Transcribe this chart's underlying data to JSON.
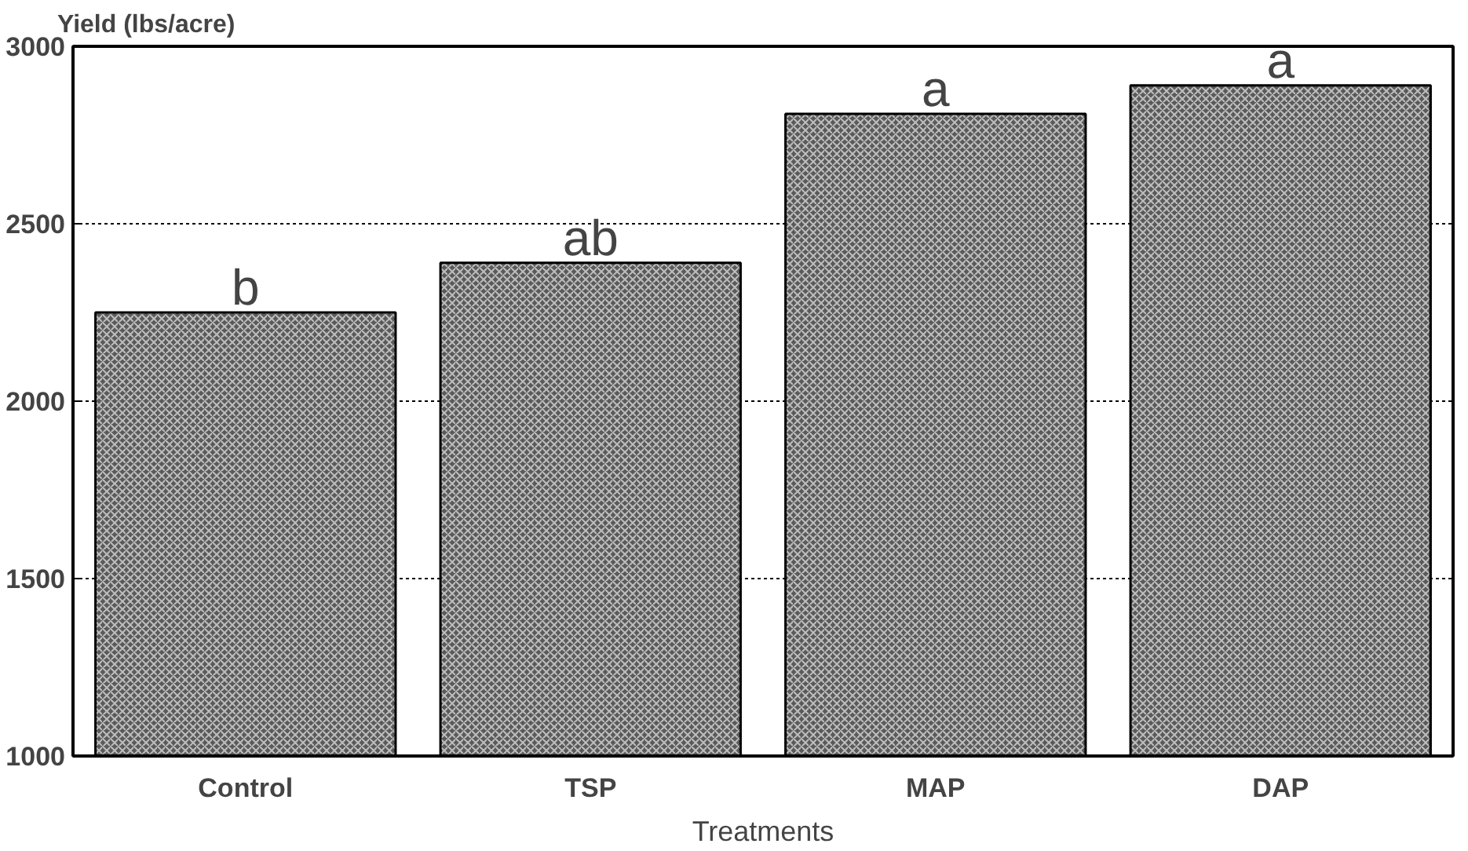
{
  "chart_data": {
    "type": "bar",
    "ylabel": "Yield (lbs/acre)",
    "xlabel": "Treatments",
    "categories": [
      "Control",
      "TSP",
      "MAP",
      "DAP"
    ],
    "values": [
      2250,
      2390,
      2810,
      2890
    ],
    "color": "#5a5a5a",
    "ylim": [
      1000,
      3000
    ],
    "yticks": [
      1000,
      1500,
      2000,
      2500,
      3000
    ],
    "grid": "y",
    "annotations": [
      {
        "text": "b",
        "x": "Control",
        "y": 2250
      },
      {
        "text": "ab",
        "x": "TSP",
        "y": 2390
      },
      {
        "text": "a",
        "x": "MAP",
        "y": 2810
      },
      {
        "text": "a",
        "x": "DAP",
        "y": 2890
      }
    ]
  }
}
